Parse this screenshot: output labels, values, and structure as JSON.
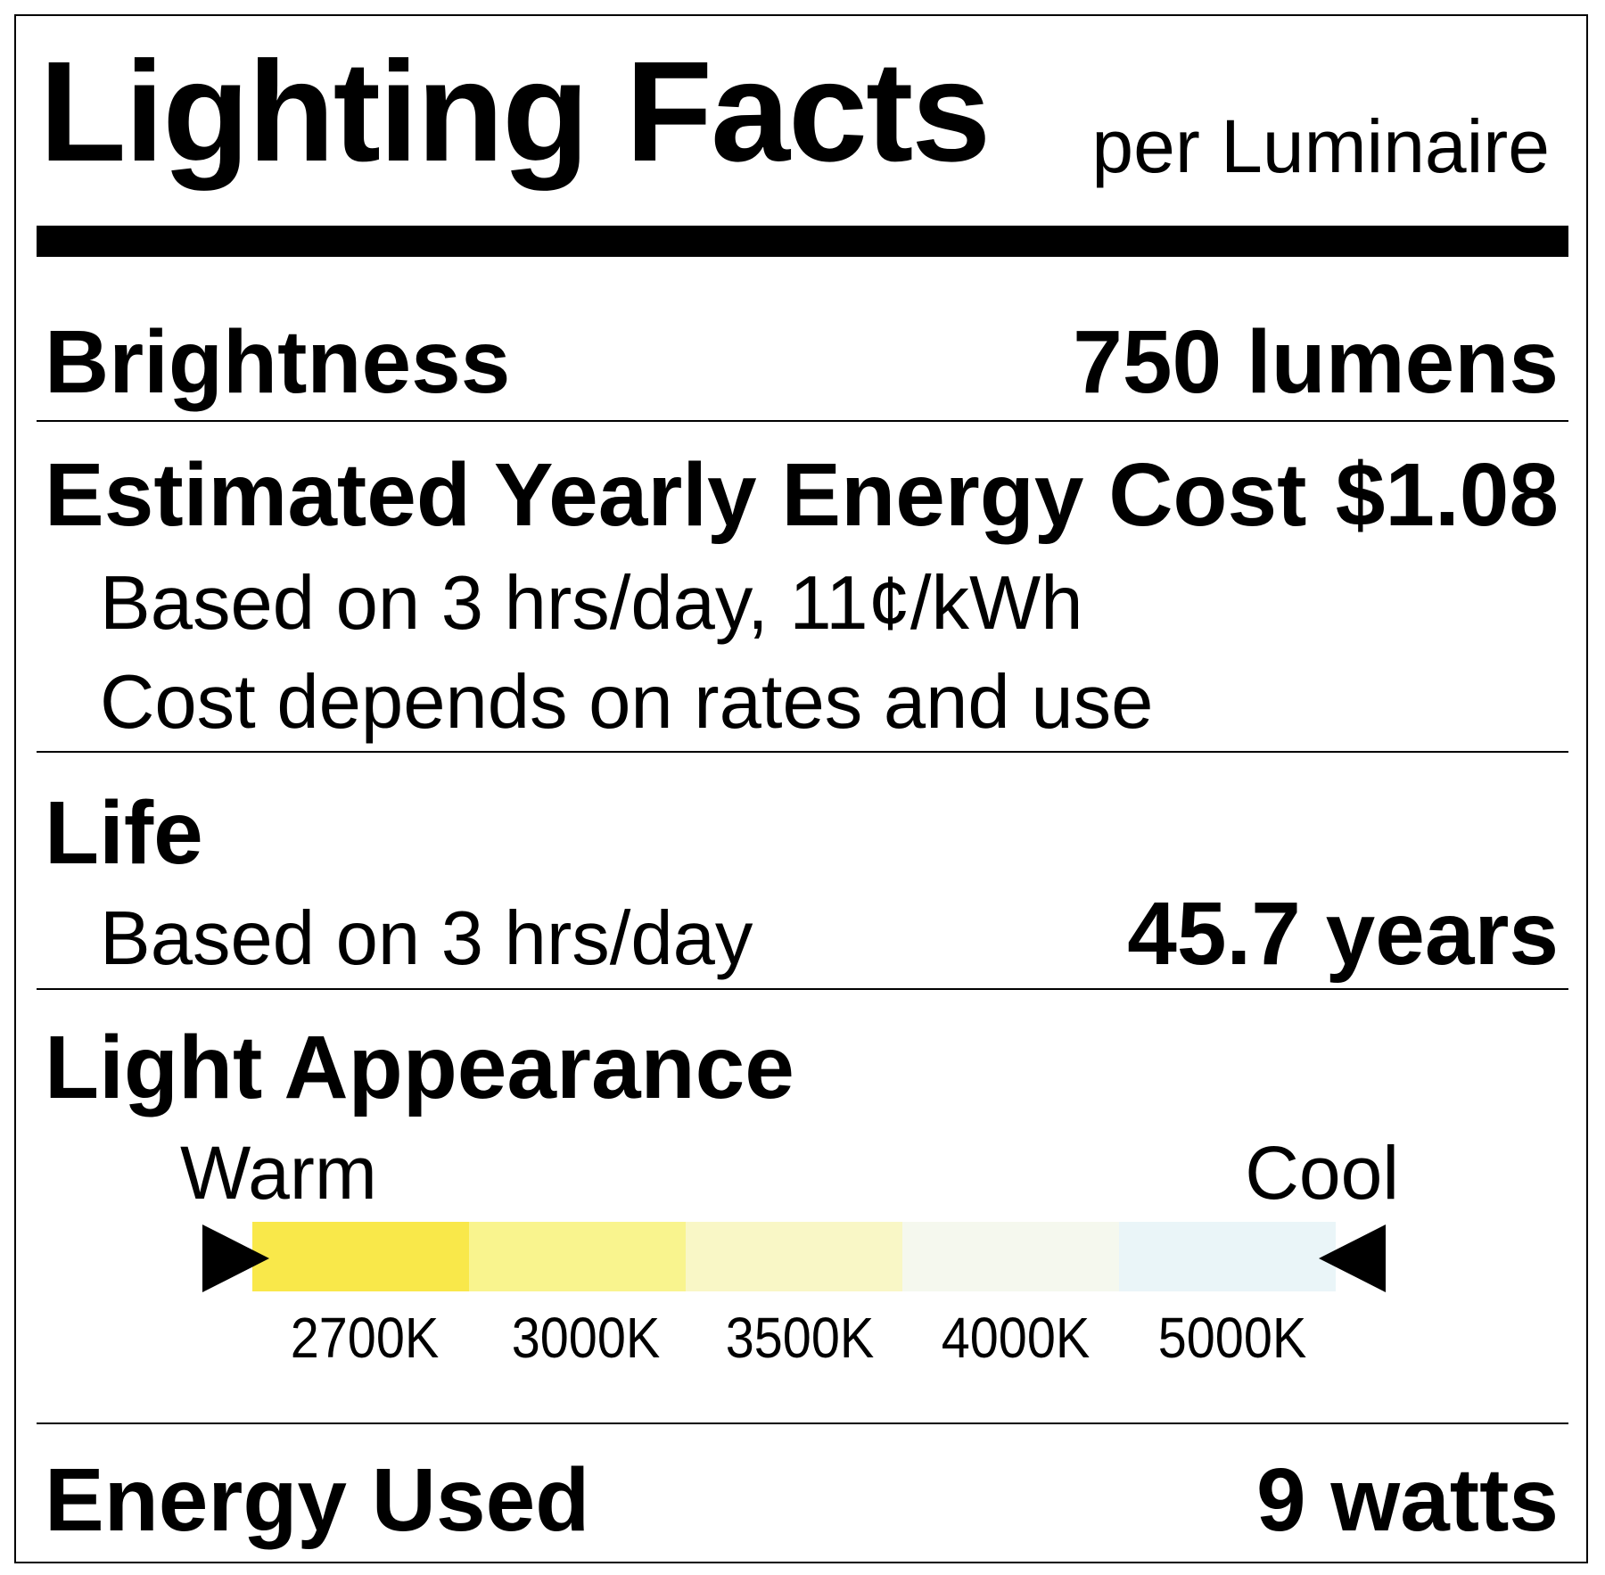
{
  "title": "Lighting Facts",
  "subtitle": "per Luminaire",
  "brightness": {
    "label": "Brightness",
    "value": "750 lumens"
  },
  "energy_cost": {
    "label": "Estimated Yearly Energy Cost",
    "value": "$1.08",
    "note1": "Based on 3 hrs/day, 11¢/kWh",
    "note2": "Cost depends on rates and use"
  },
  "life": {
    "label": "Life",
    "note": "Based on 3 hrs/day",
    "value": "45.7 years"
  },
  "light_appearance": {
    "label": "Light Appearance",
    "warm_label": "Warm",
    "cool_label": "Cool",
    "scale": [
      {
        "label": "2700K",
        "color": "#f9e84a"
      },
      {
        "label": "3000K",
        "color": "#f9f48e"
      },
      {
        "label": "3500K",
        "color": "#f9f7c6"
      },
      {
        "label": "4000K",
        "color": "#f5f8ee"
      },
      {
        "label": "5000K",
        "color": "#eaf5f8"
      }
    ]
  },
  "energy_used": {
    "label": "Energy Used",
    "value": "9 watts"
  }
}
